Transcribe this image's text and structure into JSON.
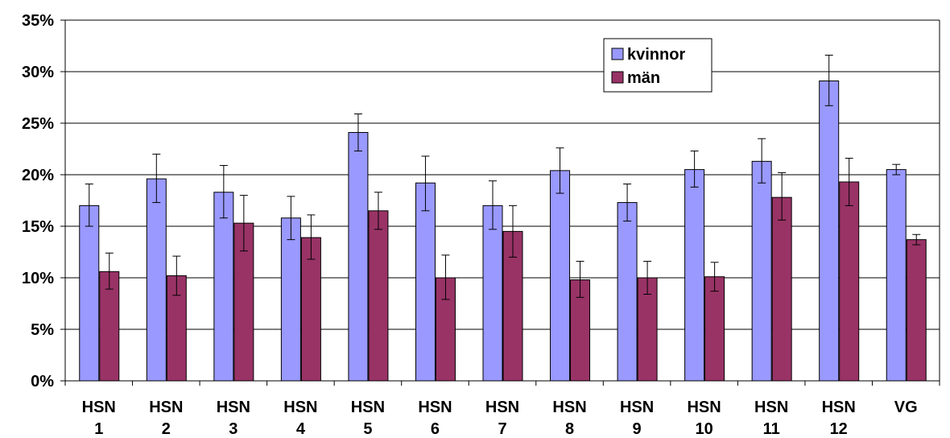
{
  "chart_data": {
    "type": "bar",
    "categories": [
      [
        "HSN",
        "1"
      ],
      [
        "HSN",
        "2"
      ],
      [
        "HSN",
        "3"
      ],
      [
        "HSN",
        "4"
      ],
      [
        "HSN",
        "5"
      ],
      [
        "HSN",
        "6"
      ],
      [
        "HSN",
        "7"
      ],
      [
        "HSN",
        "8"
      ],
      [
        "HSN",
        "9"
      ],
      [
        "HSN",
        "10"
      ],
      [
        "HSN",
        "11"
      ],
      [
        "HSN",
        "12"
      ],
      [
        "VG",
        ""
      ]
    ],
    "series": [
      {
        "name": "kvinnor",
        "color": "#9999ff",
        "values": [
          17.0,
          19.6,
          18.3,
          15.8,
          24.1,
          19.2,
          17.0,
          20.4,
          17.3,
          20.5,
          21.3,
          29.1,
          20.5
        ],
        "error_low": [
          15.0,
          17.3,
          15.8,
          13.7,
          22.3,
          16.5,
          14.7,
          18.2,
          15.5,
          18.8,
          19.2,
          26.7,
          20.0
        ],
        "error_high": [
          19.1,
          22.0,
          20.9,
          17.9,
          25.9,
          21.8,
          19.4,
          22.6,
          19.1,
          22.3,
          23.5,
          31.6,
          21.0
        ]
      },
      {
        "name": "män",
        "color": "#993366",
        "values": [
          10.6,
          10.2,
          15.3,
          13.9,
          16.5,
          10.0,
          14.5,
          9.8,
          10.0,
          10.1,
          17.8,
          19.3,
          13.7
        ],
        "error_low": [
          8.9,
          8.3,
          12.6,
          11.8,
          14.7,
          7.9,
          12.0,
          8.1,
          8.4,
          8.7,
          15.6,
          17.0,
          13.2
        ],
        "error_high": [
          12.4,
          12.1,
          18.0,
          16.1,
          18.3,
          12.2,
          17.0,
          11.6,
          11.6,
          11.5,
          20.2,
          21.6,
          14.2
        ]
      }
    ],
    "ylim": [
      0,
      35
    ],
    "yticks": [
      "0%",
      "5%",
      "10%",
      "15%",
      "20%",
      "25%",
      "30%",
      "35%"
    ],
    "grid": true,
    "legend": "top-right-inside",
    "title": "",
    "xlabel": "",
    "ylabel": ""
  }
}
